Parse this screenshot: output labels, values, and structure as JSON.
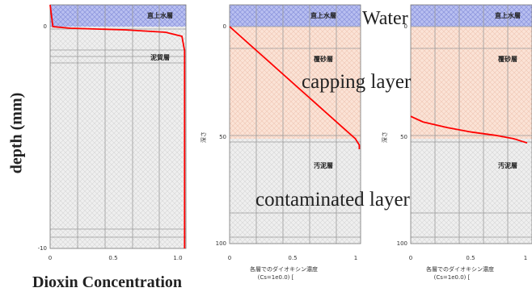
{
  "overlay": {
    "water": "Water",
    "capping": "capping layer",
    "contaminated": "contaminated layer",
    "ylabel": "depth (mm)",
    "xlabel": "Dioxin Concentration"
  },
  "colors": {
    "water": "#b8bff0",
    "capping": "#fbe3d6",
    "contaminated": "#ececec",
    "curve": "#ff0000",
    "grid": "#9a9a9a"
  },
  "chart_data": [
    {
      "type": "line",
      "panel": "left",
      "zone_labels": [
        "直上水層",
        "泥質層"
      ],
      "x_ticks": [
        "0",
        "0.5",
        "1.0"
      ],
      "y_ticks": [
        "0",
        "-10"
      ],
      "xlim": [
        0,
        1.0
      ],
      "ylim": [
        -10,
        0.3
      ],
      "series": [
        {
          "x": [
            0.0,
            0.02,
            0.15,
            0.55,
            0.85,
            0.97,
            0.99,
            0.99
          ],
          "y": [
            0.3,
            0.0,
            -0.1,
            -0.2,
            -0.35,
            -0.6,
            -1.5,
            -10
          ]
        }
      ]
    },
    {
      "type": "line",
      "panel": "middle",
      "zone_labels": [
        "直上水層",
        "覆砂層",
        "汚泥層"
      ],
      "x_ticks": [
        "0",
        "0.5",
        "1"
      ],
      "y_ticks": [
        "0",
        "50",
        "100"
      ],
      "xlim": [
        0,
        1
      ],
      "ylim": [
        100,
        -5
      ],
      "xlabel_jp": [
        "各層でのダイオキシン濃度",
        "(Cs=1e0.0) ["
      ],
      "ylabel_jp": "深さ",
      "series": [
        {
          "x": [
            0,
            0.96,
            0.99,
            0.99
          ],
          "y": [
            0,
            50,
            53,
            55
          ]
        }
      ]
    },
    {
      "type": "line",
      "panel": "right",
      "zone_labels": [
        "直上水層",
        "覆砂層",
        "汚泥層"
      ],
      "x_ticks": [
        "0",
        "0.5",
        "1"
      ],
      "y_ticks": [
        "0",
        "50",
        "100"
      ],
      "xlim": [
        0,
        1
      ],
      "ylim": [
        100,
        -5
      ],
      "xlabel_jp": [
        "各層でのダイオキシン濃度",
        "(Cs=1e0.0) ["
      ],
      "ylabel_jp": "深さ",
      "series": [
        {
          "x": [
            0,
            0.1,
            0.3,
            0.5,
            0.7,
            0.85,
            0.96
          ],
          "y": [
            40,
            42.5,
            45,
            47,
            48.5,
            50,
            52
          ]
        }
      ]
    }
  ]
}
